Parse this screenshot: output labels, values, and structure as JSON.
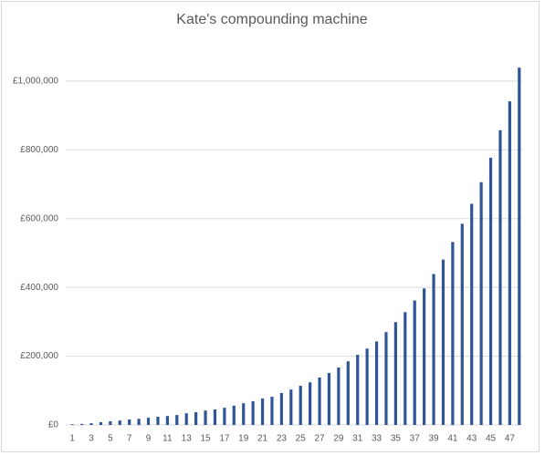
{
  "chart_data": {
    "type": "bar",
    "title": "Kate's compounding machine",
    "categories": [
      1,
      null,
      3,
      null,
      5,
      null,
      7,
      null,
      9,
      null,
      11,
      null,
      13,
      null,
      15,
      null,
      17,
      null,
      19,
      null,
      21,
      null,
      23,
      null,
      25,
      null,
      27,
      null,
      29,
      null,
      31,
      null,
      33,
      null,
      35,
      null,
      37,
      null,
      39,
      null,
      41,
      null,
      43,
      null,
      45,
      null,
      47,
      null
    ],
    "values": [
      2000,
      3000,
      5000,
      8000,
      11000,
      13000,
      16000,
      18000,
      21000,
      24000,
      26000,
      29000,
      34000,
      37000,
      42000,
      45000,
      50000,
      56000,
      63000,
      69000,
      77000,
      82000,
      93000,
      103000,
      114000,
      124000,
      138000,
      151000,
      167000,
      185000,
      204000,
      222000,
      243000,
      270000,
      299000,
      328000,
      362000,
      397000,
      439000,
      481000,
      532000,
      585000,
      643000,
      706000,
      777000,
      857000,
      941000,
      1039000
    ],
    "color": "#2f5597",
    "ylim": [
      0,
      1050000
    ],
    "yticks": [
      {
        "value": 0,
        "label": "£0"
      },
      {
        "value": 200000,
        "label": "£200,000"
      },
      {
        "value": 400000,
        "label": "£400,000"
      },
      {
        "value": 600000,
        "label": "£600,000"
      },
      {
        "value": 800000,
        "label": "£800,000"
      },
      {
        "value": 1000000,
        "label": "£1,000,000"
      }
    ],
    "grid": true
  }
}
